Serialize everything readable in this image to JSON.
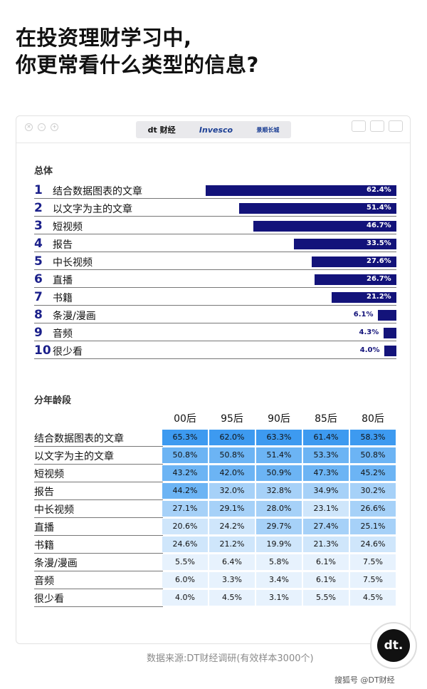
{
  "title_lines": [
    "在投资理财学习中,",
    "你更常看什么类型的信息?"
  ],
  "logos": {
    "dt": "dt 财经",
    "invesco": "Invesco",
    "jingshun": "景顺长城"
  },
  "section_overall": "总体",
  "section_age": "分年龄段",
  "source": "数据来源:DT财经调研(有效样本3000个)",
  "watermark": "搜狐号 @DT财经",
  "badge": "dt.",
  "chart_data": [
    {
      "type": "bar",
      "orientation": "horizontal",
      "title": "总体",
      "ranks": [
        "1",
        "2",
        "3",
        "4",
        "5",
        "6",
        "7",
        "8",
        "9",
        "10"
      ],
      "categories": [
        "结合数据图表的文章",
        "以文字为主的文章",
        "短视频",
        "报告",
        "中长视频",
        "直播",
        "书籍",
        "条漫/漫画",
        "音频",
        "很少看"
      ],
      "values": [
        62.4,
        51.4,
        46.7,
        33.5,
        27.6,
        26.7,
        21.2,
        6.1,
        4.3,
        4.0
      ],
      "labels": [
        "62.4%",
        "51.4%",
        "46.7%",
        "33.5%",
        "27.6%",
        "26.7%",
        "21.2%",
        "6.1%",
        "4.3%",
        "4.0%"
      ],
      "unit": "%",
      "bar_color": "#13137a",
      "xlim": [
        0,
        100
      ]
    },
    {
      "type": "heatmap",
      "title": "分年龄段",
      "columns": [
        "00后",
        "95后",
        "90后",
        "85后",
        "80后"
      ],
      "rows": [
        "结合数据图表的文章",
        "以文字为主的文章",
        "短视频",
        "报告",
        "中长视频",
        "直播",
        "书籍",
        "条漫/漫画",
        "音频",
        "很少看"
      ],
      "values": [
        [
          65.3,
          62.0,
          63.3,
          61.4,
          58.3
        ],
        [
          50.8,
          50.8,
          51.4,
          53.3,
          50.8
        ],
        [
          43.2,
          42.0,
          50.9,
          47.3,
          45.2
        ],
        [
          44.2,
          32.0,
          32.8,
          34.9,
          30.2
        ],
        [
          27.1,
          29.1,
          28.0,
          23.1,
          26.6
        ],
        [
          20.6,
          24.2,
          29.7,
          27.4,
          25.1
        ],
        [
          24.6,
          21.2,
          19.9,
          21.3,
          24.6
        ],
        [
          5.5,
          6.4,
          5.8,
          6.1,
          7.5
        ],
        [
          6.0,
          3.3,
          3.4,
          6.1,
          7.5
        ],
        [
          4.0,
          4.5,
          3.1,
          5.5,
          4.5
        ]
      ],
      "unit": "%",
      "colors": {
        "high": "#3d9af0",
        "mid_high": "#6cb4f4",
        "mid": "#a6d1f8",
        "low": "#cfe6fb",
        "lowest": "#e7f2fd"
      }
    }
  ]
}
